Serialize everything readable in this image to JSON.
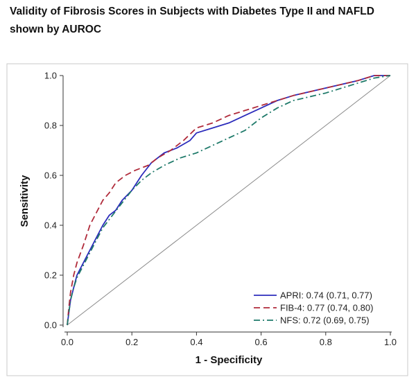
{
  "chart_data": {
    "type": "line",
    "title": "Validity of Fibrosis Scores in Subjects with Diabetes Type II and NAFLD shown by AUROC",
    "xlabel": "1 - Specificity",
    "ylabel": "Sensitivity",
    "xlim": [
      0,
      1
    ],
    "ylim": [
      0,
      1
    ],
    "xticks": [
      "0.0",
      "0.2",
      "0.4",
      "0.6",
      "0.8",
      "1.0"
    ],
    "yticks": [
      "0.0",
      "0.2",
      "0.4",
      "0.6",
      "0.8",
      "1.0"
    ],
    "grid": false,
    "legend_position": "bottom-right",
    "reference_line": {
      "from": [
        0,
        0
      ],
      "to": [
        1,
        1
      ],
      "color": "#8a8a8a"
    },
    "series": [
      {
        "name": "APRI: 0.74 (0.71, 0.77)",
        "color": "#2b2bbb",
        "dash": "solid",
        "points": [
          [
            0,
            0
          ],
          [
            0.005,
            0.05
          ],
          [
            0.01,
            0.1
          ],
          [
            0.02,
            0.15
          ],
          [
            0.03,
            0.2
          ],
          [
            0.05,
            0.25
          ],
          [
            0.07,
            0.3
          ],
          [
            0.09,
            0.35
          ],
          [
            0.11,
            0.4
          ],
          [
            0.13,
            0.44
          ],
          [
            0.15,
            0.46
          ],
          [
            0.17,
            0.5
          ],
          [
            0.2,
            0.54
          ],
          [
            0.23,
            0.6
          ],
          [
            0.26,
            0.65
          ],
          [
            0.3,
            0.69
          ],
          [
            0.34,
            0.71
          ],
          [
            0.38,
            0.74
          ],
          [
            0.4,
            0.77
          ],
          [
            0.45,
            0.79
          ],
          [
            0.5,
            0.81
          ],
          [
            0.55,
            0.84
          ],
          [
            0.6,
            0.87
          ],
          [
            0.65,
            0.9
          ],
          [
            0.7,
            0.92
          ],
          [
            0.8,
            0.95
          ],
          [
            0.9,
            0.98
          ],
          [
            0.95,
            1.0
          ],
          [
            1,
            1
          ]
        ]
      },
      {
        "name": "FIB-4: 0.77 (0.74, 0.80)",
        "color": "#b02a3a",
        "dash": "long-dash",
        "points": [
          [
            0,
            0
          ],
          [
            0.005,
            0.07
          ],
          [
            0.01,
            0.13
          ],
          [
            0.02,
            0.2
          ],
          [
            0.03,
            0.25
          ],
          [
            0.05,
            0.32
          ],
          [
            0.07,
            0.4
          ],
          [
            0.09,
            0.45
          ],
          [
            0.11,
            0.5
          ],
          [
            0.13,
            0.53
          ],
          [
            0.15,
            0.57
          ],
          [
            0.18,
            0.6
          ],
          [
            0.21,
            0.62
          ],
          [
            0.25,
            0.64
          ],
          [
            0.28,
            0.67
          ],
          [
            0.32,
            0.7
          ],
          [
            0.36,
            0.74
          ],
          [
            0.4,
            0.79
          ],
          [
            0.45,
            0.81
          ],
          [
            0.5,
            0.84
          ],
          [
            0.55,
            0.86
          ],
          [
            0.6,
            0.88
          ],
          [
            0.65,
            0.9
          ],
          [
            0.7,
            0.92
          ],
          [
            0.8,
            0.95
          ],
          [
            0.9,
            0.98
          ],
          [
            0.95,
            1.0
          ],
          [
            1,
            1
          ]
        ]
      },
      {
        "name": "NFS: 0.72 (0.69, 0.75)",
        "color": "#1f7a6a",
        "dash": "dash-dot",
        "points": [
          [
            0,
            0
          ],
          [
            0.005,
            0.05
          ],
          [
            0.01,
            0.1
          ],
          [
            0.02,
            0.15
          ],
          [
            0.03,
            0.19
          ],
          [
            0.05,
            0.24
          ],
          [
            0.07,
            0.29
          ],
          [
            0.09,
            0.34
          ],
          [
            0.11,
            0.39
          ],
          [
            0.14,
            0.44
          ],
          [
            0.17,
            0.49
          ],
          [
            0.2,
            0.54
          ],
          [
            0.23,
            0.58
          ],
          [
            0.26,
            0.61
          ],
          [
            0.3,
            0.64
          ],
          [
            0.35,
            0.67
          ],
          [
            0.4,
            0.69
          ],
          [
            0.45,
            0.72
          ],
          [
            0.5,
            0.75
          ],
          [
            0.55,
            0.78
          ],
          [
            0.6,
            0.83
          ],
          [
            0.65,
            0.87
          ],
          [
            0.7,
            0.9
          ],
          [
            0.8,
            0.93
          ],
          [
            0.9,
            0.97
          ],
          [
            0.95,
            0.99
          ],
          [
            1,
            1
          ]
        ]
      }
    ]
  }
}
